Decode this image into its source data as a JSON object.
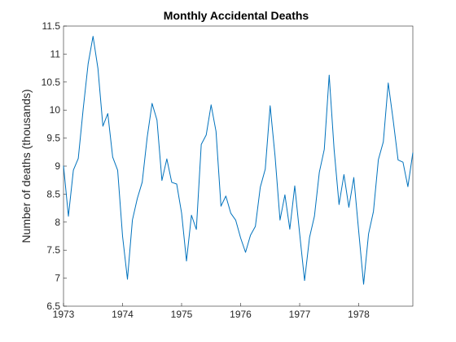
{
  "chart_data": {
    "type": "line",
    "title": "Monthly Accidental Deaths",
    "xlabel": "",
    "ylabel": "Number of deaths (thousands)",
    "xlim": [
      1973,
      1978.917
    ],
    "ylim": [
      6.5,
      11.5
    ],
    "x_ticks": [
      1973,
      1974,
      1975,
      1976,
      1977,
      1978
    ],
    "y_ticks": [
      6.5,
      7,
      7.5,
      8,
      8.5,
      9,
      9.5,
      10,
      10.5,
      11,
      11.5
    ],
    "grid": false,
    "line_color": "#0072bd",
    "series": [
      {
        "x": [
          1973,
          1973.083,
          1973.167,
          1973.25,
          1973.333,
          1973.417,
          1973.5,
          1973.583,
          1973.667,
          1973.75,
          1973.833,
          1973.917,
          1974,
          1974.083,
          1974.167,
          1974.25,
          1974.333,
          1974.417,
          1974.5,
          1974.583,
          1974.667,
          1974.75,
          1974.833,
          1974.917,
          1975,
          1975.083,
          1975.167,
          1975.25,
          1975.333,
          1975.417,
          1975.5,
          1975.583,
          1975.667,
          1975.75,
          1975.833,
          1975.917,
          1976,
          1976.083,
          1976.167,
          1976.25,
          1976.333,
          1976.417,
          1976.5,
          1976.583,
          1976.667,
          1976.75,
          1976.833,
          1976.917,
          1977,
          1977.083,
          1977.167,
          1977.25,
          1977.333,
          1977.417,
          1977.5,
          1977.583,
          1977.667,
          1977.75,
          1977.833,
          1977.917,
          1978,
          1978.083,
          1978.167,
          1978.25,
          1978.333,
          1978.417,
          1978.5,
          1978.583,
          1978.667,
          1978.75,
          1978.833,
          1978.917
        ],
        "values": [
          9.007,
          8.106,
          8.928,
          9.137,
          10.017,
          10.826,
          11.317,
          10.744,
          9.713,
          9.938,
          9.161,
          8.927,
          7.75,
          6.981,
          8.038,
          8.422,
          8.714,
          9.512,
          10.12,
          9.823,
          8.743,
          9.129,
          8.71,
          8.68,
          8.162,
          7.306,
          8.124,
          7.87,
          9.387,
          9.556,
          10.093,
          9.62,
          8.285,
          8.466,
          8.16,
          8.034,
          7.717,
          7.461,
          7.767,
          7.925,
          8.623,
          8.945,
          10.078,
          9.179,
          8.037,
          8.488,
          7.874,
          8.647,
          7.792,
          6.957,
          7.726,
          8.106,
          8.89,
          9.299,
          10.625,
          9.302,
          8.314,
          8.85,
          8.265,
          8.796,
          7.836,
          6.892,
          7.791,
          8.192,
          9.115,
          9.434,
          10.484,
          9.827,
          9.11,
          9.07,
          8.633,
          9.24
        ]
      }
    ]
  }
}
